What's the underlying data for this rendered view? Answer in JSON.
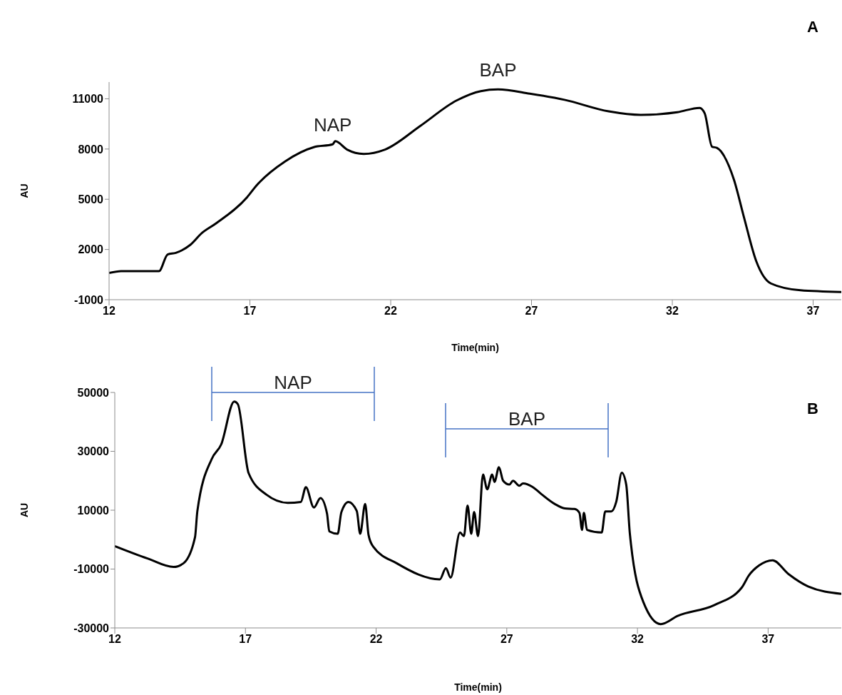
{
  "chart_data": [
    {
      "type": "line",
      "title": "A",
      "xlabel": "Time(min)",
      "ylabel": "AU",
      "xlim": [
        12,
        38
      ],
      "xticks": [
        12,
        17,
        22,
        27,
        32,
        37
      ],
      "ylim": [
        -1000,
        12000
      ],
      "yticks": [
        -1000,
        2000,
        5000,
        8000,
        11000
      ],
      "grid": false,
      "legend": false,
      "marker": "none",
      "line_style": "solid",
      "annotations": [
        {
          "text": "NAP",
          "x": 19.94,
          "y": 8280
        },
        {
          "text": "BAP",
          "x": 25.81,
          "y": 11560
        }
      ],
      "series": [
        {
          "color": "#000000",
          "x": [
            12,
            12.43,
            13.77,
            14.08,
            14.37,
            14.88,
            15.3,
            15.8,
            16.9,
            17.24,
            18.25,
            19.27,
            19.94,
            20.03,
            20.45,
            21.04,
            21.8,
            23.06,
            24.33,
            25.2,
            25.81,
            26.94,
            28.17,
            29.74,
            30.88,
            32.18,
            32.97,
            33.15,
            33.41,
            33.58,
            34.19,
            34.54,
            34.98,
            35.5,
            36.55,
            38
          ],
          "values": [
            600,
            710,
            700,
            1700,
            1800,
            2270,
            2990,
            3560,
            5120,
            5830,
            7260,
            8110,
            8280,
            8470,
            7970,
            7710,
            7970,
            9390,
            10890,
            11460,
            11560,
            11310,
            10940,
            10250,
            10040,
            10200,
            10460,
            10130,
            8140,
            8070,
            6160,
            3950,
            1300,
            -30,
            -440,
            -540
          ]
        }
      ]
    },
    {
      "type": "line",
      "title": "B",
      "xlabel": "Time(min)",
      "ylabel": "AU",
      "xlim": [
        12,
        39.8
      ],
      "xticks": [
        12,
        17,
        22,
        27,
        32,
        37
      ],
      "ylim": [
        -30000,
        50000
      ],
      "yticks": [
        -30000,
        -10000,
        10000,
        30000,
        50000
      ],
      "grid": false,
      "legend": false,
      "marker": "none",
      "line_style": "solid",
      "annotations": [
        "NAP",
        "BAP"
      ],
      "series": [
        {
          "color": "#000000",
          "x": [
            12,
            13.25,
            14.25,
            14.62,
            15.07,
            15.16,
            15.71,
            16.07,
            16.57,
            16.71,
            17.12,
            17.8,
            18.62,
            19.12,
            19.31,
            19.62,
            19.87,
            20.12,
            20.21,
            20.53,
            20.67,
            20.94,
            21.26,
            21.39,
            21.58,
            21.71,
            21.89,
            22.8,
            24.44,
            24.67,
            24.85,
            25.21,
            25.36,
            25.5,
            25.64,
            25.75,
            25.9,
            26.09,
            26.25,
            26.44,
            26.53,
            26.7,
            26.86,
            27.1,
            27.24,
            27.48,
            27.62,
            27.99,
            28.28,
            28.84,
            29.22,
            29.59,
            29.78,
            29.88,
            29.95,
            30.07,
            30.63,
            30.77,
            31.0,
            31.19,
            31.4,
            31.57,
            31.71,
            32.23,
            32.89,
            33.54,
            34.95,
            35.99,
            36.27,
            36.65,
            37.17,
            37.78,
            38.53,
            39.8
          ],
          "values": [
            -2200,
            -6400,
            -9300,
            -8100,
            800,
            9700,
            27400,
            32300,
            46900,
            46000,
            22600,
            15300,
            12500,
            12800,
            17800,
            10900,
            14100,
            8900,
            2800,
            2000,
            9300,
            12800,
            9700,
            2000,
            12100,
            1600,
            -2400,
            -8100,
            -13500,
            -9700,
            -12900,
            2400,
            1200,
            11600,
            2000,
            9400,
            1200,
            22100,
            17100,
            22100,
            19600,
            24600,
            20000,
            18700,
            20000,
            18300,
            19100,
            17900,
            15800,
            12100,
            10600,
            10400,
            9100,
            3300,
            9100,
            3300,
            2400,
            9600,
            9600,
            12900,
            22700,
            18700,
            2000,
            -21300,
            -28700,
            -25900,
            -22200,
            -16300,
            -12100,
            -8800,
            -7000,
            -11700,
            -15900,
            -18400
          ]
        }
      ]
    }
  ]
}
